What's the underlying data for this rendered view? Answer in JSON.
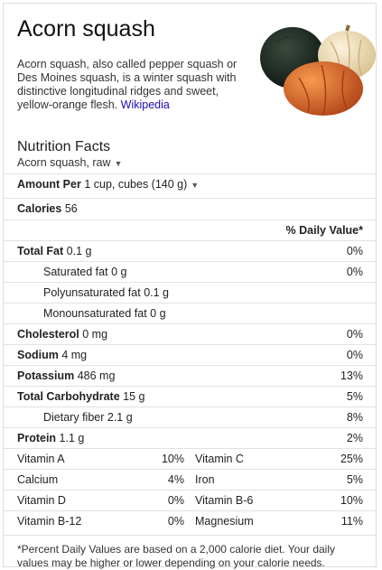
{
  "title": "Acorn squash",
  "description": "Acorn squash, also called pepper squash or Des Moines squash, is a winter squash with distinctive longitudinal ridges and sweet, yellow-orange flesh.",
  "source_link": "Wikipedia",
  "nutrition": {
    "heading": "Nutrition Facts",
    "food": "Acorn squash, raw",
    "amount_label": "Amount Per",
    "amount_value": "1 cup, cubes (140 g)",
    "calories_label": "Calories",
    "calories_value": "56",
    "daily_value_header": "% Daily Value*",
    "rows": [
      {
        "label": "Total Fat",
        "amount": "0.1 g",
        "pct": "0%"
      },
      {
        "label": "Saturated fat",
        "amount": "0 g",
        "pct": "0%"
      },
      {
        "label": "Polyunsaturated fat",
        "amount": "0.1 g",
        "pct": ""
      },
      {
        "label": "Monounsaturated fat",
        "amount": "0 g",
        "pct": ""
      },
      {
        "label": "Cholesterol",
        "amount": "0 mg",
        "pct": "0%"
      },
      {
        "label": "Sodium",
        "amount": "4 mg",
        "pct": "0%"
      },
      {
        "label": "Potassium",
        "amount": "486 mg",
        "pct": "13%"
      },
      {
        "label": "Total Carbohydrate",
        "amount": "15 g",
        "pct": "5%"
      },
      {
        "label": "Dietary fiber",
        "amount": "2.1 g",
        "pct": "8%"
      },
      {
        "label": "Protein",
        "amount": "1.1 g",
        "pct": "2%"
      }
    ],
    "vitamins": [
      {
        "a": "Vitamin A",
        "av": "10%",
        "b": "Vitamin C",
        "bv": "25%"
      },
      {
        "a": "Calcium",
        "av": "4%",
        "b": "Iron",
        "bv": "5%"
      },
      {
        "a": "Vitamin D",
        "av": "0%",
        "b": "Vitamin B-6",
        "bv": "10%"
      },
      {
        "a": "Vitamin B-12",
        "av": "0%",
        "b": "Magnesium",
        "bv": "11%"
      }
    ],
    "footnote": "*Percent Daily Values are based on a 2,000 calorie diet. Your daily values may be higher or lower depending on your calorie needs."
  },
  "colors": {
    "link": "#1a0dab",
    "border": "#e2e2e2"
  },
  "icons": [
    "caret-down-icon",
    "squash-image"
  ]
}
